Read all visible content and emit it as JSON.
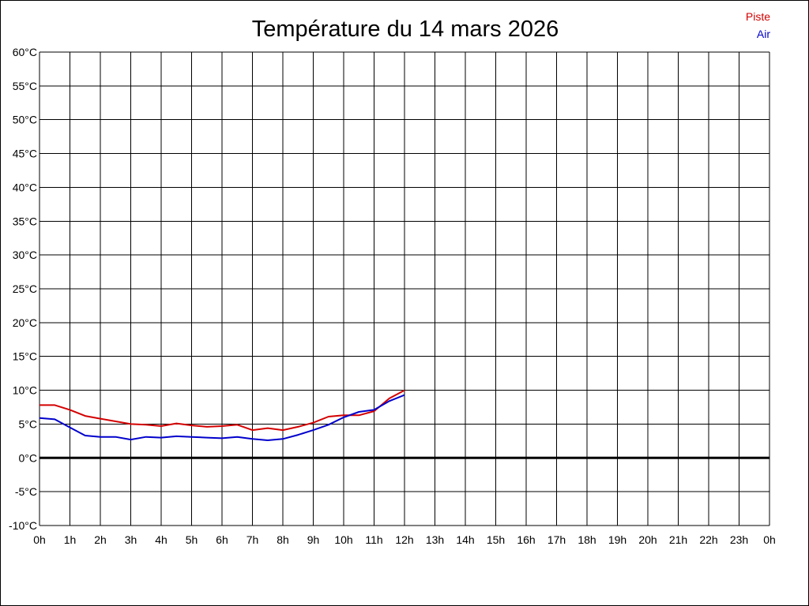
{
  "chart_data": {
    "type": "line",
    "title": "Température du 14 mars 2026",
    "xlabel": "",
    "ylabel": "",
    "grid": true,
    "legend_position": "top-right",
    "x_range": [
      0,
      24
    ],
    "ylim": [
      -10,
      60
    ],
    "y_ticks": [
      -10,
      -5,
      0,
      5,
      10,
      15,
      20,
      25,
      30,
      35,
      40,
      45,
      50,
      55,
      60
    ],
    "y_tick_labels": [
      "-10°C",
      "-5°C",
      "0°C",
      "5°C",
      "10°C",
      "15°C",
      "20°C",
      "25°C",
      "30°C",
      "35°C",
      "40°C",
      "45°C",
      "50°C",
      "55°C",
      "60°C"
    ],
    "x_ticks": [
      0,
      1,
      2,
      3,
      4,
      5,
      6,
      7,
      8,
      9,
      10,
      11,
      12,
      13,
      14,
      15,
      16,
      17,
      18,
      19,
      20,
      21,
      22,
      23,
      24
    ],
    "x_tick_labels": [
      "0h",
      "1h",
      "2h",
      "3h",
      "4h",
      "5h",
      "6h",
      "7h",
      "8h",
      "9h",
      "10h",
      "11h",
      "12h",
      "13h",
      "14h",
      "15h",
      "16h",
      "17h",
      "18h",
      "19h",
      "20h",
      "21h",
      "22h",
      "23h",
      "0h"
    ],
    "zero_line": 0,
    "series": [
      {
        "name": "Piste",
        "color": "#d40000",
        "x": [
          0,
          0.5,
          1,
          1.5,
          2,
          2.5,
          3,
          3.5,
          4,
          4.5,
          5,
          5.5,
          6,
          6.5,
          7,
          7.5,
          8,
          8.5,
          9,
          9.5,
          10,
          10.5,
          11,
          11.5,
          12
        ],
        "y": [
          7.8,
          7.8,
          7.1,
          6.2,
          5.8,
          5.4,
          5.0,
          4.9,
          4.7,
          5.1,
          4.8,
          4.6,
          4.7,
          4.9,
          4.1,
          4.4,
          4.1,
          4.6,
          5.2,
          6.1,
          6.3,
          6.3,
          6.9,
          8.8,
          10.0
        ]
      },
      {
        "name": "Air",
        "color": "#0000cc",
        "x": [
          0,
          0.5,
          1,
          1.5,
          2,
          2.5,
          3,
          3.5,
          4,
          4.5,
          5,
          5.5,
          6,
          6.5,
          7,
          7.5,
          8,
          8.5,
          9,
          9.5,
          10,
          10.5,
          11,
          11.5,
          12
        ],
        "y": [
          5.9,
          5.7,
          4.5,
          3.3,
          3.1,
          3.1,
          2.7,
          3.1,
          3.0,
          3.2,
          3.1,
          3.0,
          2.9,
          3.1,
          2.8,
          2.6,
          2.8,
          3.4,
          4.1,
          4.9,
          6.0,
          6.8,
          7.1,
          8.4,
          9.3
        ]
      }
    ]
  }
}
